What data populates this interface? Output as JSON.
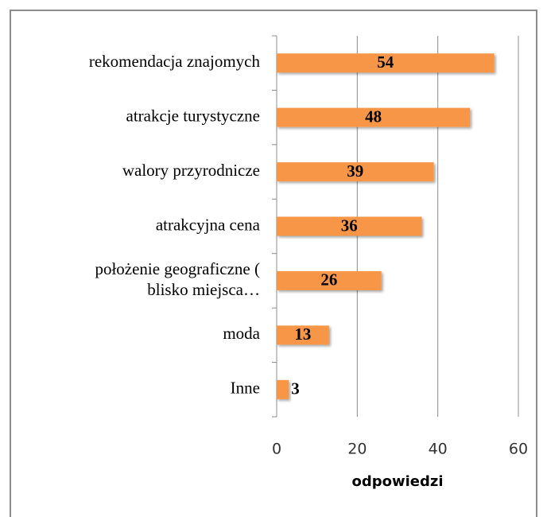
{
  "chart_data": {
    "type": "bar",
    "orientation": "horizontal",
    "categories": [
      "rekomendacja znajomych",
      "atrakcje turystyczne",
      "walory przyrodnicze",
      "atrakcyjna cena",
      "położenie geograficzne ( blisko miejsca…",
      "moda",
      "Inne"
    ],
    "values": [
      54,
      48,
      39,
      36,
      26,
      13,
      3
    ],
    "color": "#f79646",
    "xlabel": "odpowiedzi",
    "xlim": [
      0,
      60
    ],
    "xticks": [
      0,
      20,
      40,
      60
    ],
    "grid": true
  }
}
